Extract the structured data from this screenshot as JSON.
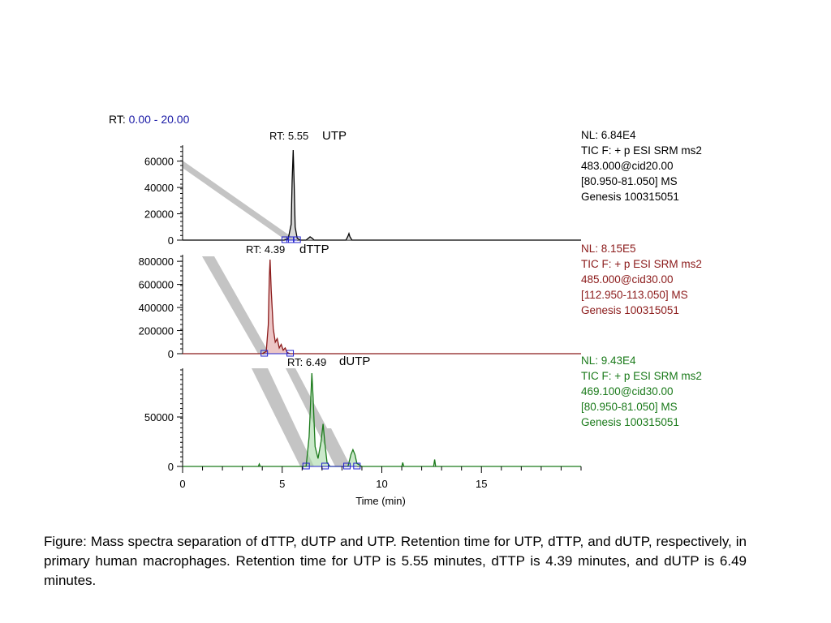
{
  "rt_range": {
    "prefix": "RT: ",
    "value": "0.00 - 20.00"
  },
  "colors": {
    "blue": "#1a1aa6",
    "black": "#000000",
    "maroon": "#8b1a1a",
    "green": "#1a7a1a",
    "gray": "#c4c4c4"
  },
  "panels": [
    {
      "nl": "NL: 6.84E4",
      "lines": [
        "TIC F: + p ESI SRM ms2",
        "483.000@cid20.00",
        "[80.950-81.050]  MS",
        "Genesis 100315051"
      ]
    },
    {
      "nl": "NL: 8.15E5",
      "lines": [
        "TIC F: + p ESI SRM ms2",
        "485.000@cid30.00",
        "[112.950-113.050]  MS",
        "Genesis 100315051"
      ]
    },
    {
      "nl": "NL: 9.43E4",
      "lines": [
        "TIC F: + p ESI SRM ms2",
        "469.100@cid30.00",
        "[80.950-81.050]  MS",
        "Genesis 100315051"
      ]
    }
  ],
  "chart_data": [
    {
      "type": "line",
      "color": "#000000",
      "peak_rt_label": "RT: 5.55",
      "compound": "UTP",
      "xlim": [
        0,
        20
      ],
      "ylim": [
        0,
        68400
      ],
      "yticks": [
        0,
        20000,
        40000,
        60000
      ],
      "ytick_labels": [
        "0",
        "20000",
        "40000",
        "60000"
      ],
      "x": [
        0,
        5.1,
        5.3,
        5.45,
        5.5,
        5.55,
        5.6,
        5.65,
        5.75,
        5.9,
        6.2,
        6.4,
        6.5,
        6.6,
        8.2,
        8.3,
        8.35,
        8.4,
        8.5,
        20
      ],
      "y": [
        0,
        0,
        1000,
        12000,
        45000,
        68400,
        42000,
        10000,
        1500,
        0,
        0,
        2500,
        1500,
        0,
        0,
        3000,
        5000,
        2500,
        0,
        0
      ]
    },
    {
      "type": "line",
      "color": "#8b1a1a",
      "peak_rt_label": "RT: 4.39",
      "compound": "dTTP",
      "xlim": [
        0,
        20
      ],
      "ylim": [
        0,
        815000
      ],
      "yticks": [
        0,
        200000,
        400000,
        600000,
        800000
      ],
      "ytick_labels": [
        "0",
        "200000",
        "400000",
        "600000",
        "800000"
      ],
      "x": [
        0,
        4.0,
        4.2,
        4.3,
        4.35,
        4.39,
        4.45,
        4.55,
        4.65,
        4.75,
        4.85,
        4.95,
        5.05,
        5.15,
        5.25,
        5.4,
        20
      ],
      "y": [
        0,
        0,
        20000,
        250000,
        650000,
        815000,
        550000,
        220000,
        100000,
        130000,
        50000,
        80000,
        30000,
        50000,
        10000,
        0,
        0
      ]
    },
    {
      "type": "line",
      "color": "#1a7a1a",
      "peak_rt_label": "RT: 6.49",
      "compound": "dUTP",
      "xlim": [
        0,
        20
      ],
      "ylim": [
        0,
        94300
      ],
      "yticks": [
        0,
        50000
      ],
      "ytick_labels": [
        "0",
        "50000"
      ],
      "x": [
        0,
        3.8,
        3.85,
        3.9,
        6.2,
        6.35,
        6.45,
        6.49,
        6.55,
        6.65,
        6.8,
        6.95,
        7.05,
        7.15,
        7.25,
        7.4,
        8.3,
        8.45,
        8.55,
        8.65,
        8.75,
        9.0,
        11.0,
        11.05,
        11.1,
        12.6,
        12.65,
        12.7,
        20
      ],
      "y": [
        0,
        0,
        2500,
        0,
        0,
        30000,
        75000,
        94300,
        70000,
        20000,
        8000,
        25000,
        43000,
        22000,
        4000,
        0,
        0,
        12000,
        17000,
        12000,
        3000,
        0,
        0,
        4000,
        0,
        0,
        7000,
        0,
        0
      ]
    }
  ],
  "x_axis": {
    "ticks": [
      0,
      5,
      10,
      15
    ],
    "tick_labels": [
      "0",
      "5",
      "10",
      "15"
    ],
    "label": "Time (min)"
  },
  "caption": "Figure:  Mass spectra separation of dTTP, dUTP and UTP. Retention time for UTP, dTTP, and dUTP, respectively, in primary human macrophages.  Retention time for UTP is 5.55 minutes, dTTP is 4.39 minutes, and dUTP is 6.49 minutes."
}
